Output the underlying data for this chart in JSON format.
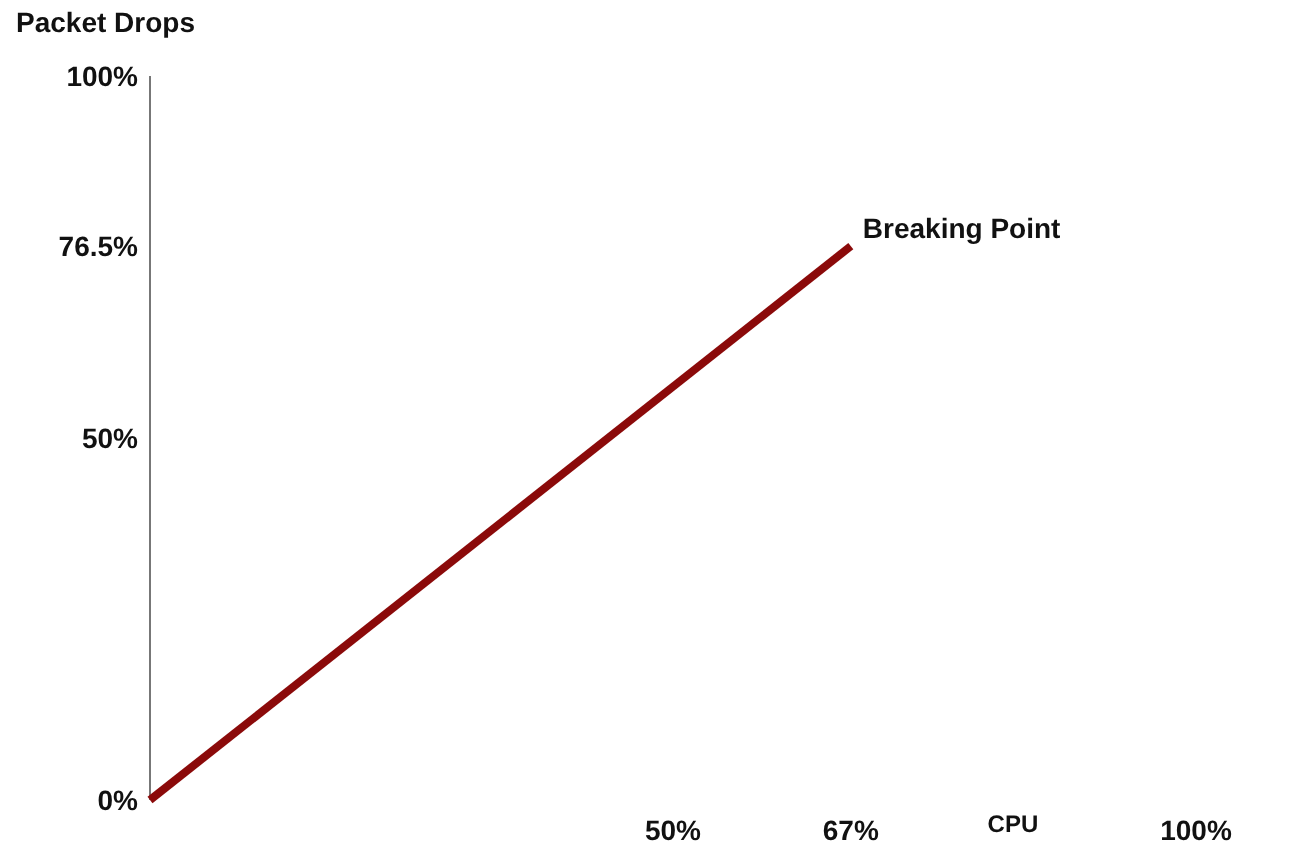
{
  "chart_data": {
    "type": "line",
    "ylabel": "Packet Drops",
    "xlabel": "CPU",
    "x": [
      0,
      67
    ],
    "values": [
      0,
      76.5
    ],
    "color": "#8b0a0a",
    "xlim": [
      0,
      100
    ],
    "xticks": [
      {
        "value": 50,
        "label": "50%"
      },
      {
        "value": 67,
        "label": "67%"
      },
      {
        "value": 100,
        "label": "100%"
      }
    ],
    "ylim": [
      0,
      100
    ],
    "yticks": [
      {
        "value": 0,
        "label": "0%"
      },
      {
        "value": 50,
        "label": "50%"
      },
      {
        "value": 76.5,
        "label": "76.5%"
      },
      {
        "value": 100,
        "label": "100%"
      }
    ],
    "annotations": [
      {
        "text": "Breaking Point",
        "x": 67,
        "y": 76.5
      }
    ],
    "marker": "none",
    "line_style": "solid"
  }
}
